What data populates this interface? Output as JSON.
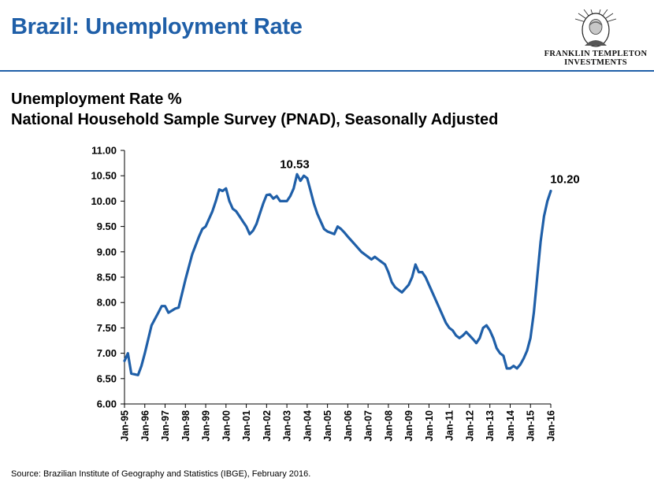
{
  "header": {
    "title": "Brazil: Unemployment Rate",
    "logo_line1": "FRANKLIN TEMPLETON",
    "logo_line2": "INVESTMENTS"
  },
  "subtitle": {
    "line1": "Unemployment Rate %",
    "line2": "National Household Sample Survey (PNAD), Seasonally Adjusted"
  },
  "source": "Source: Brazilian Institute of Geography and Statistics (IBGE), February 2016.",
  "chart_data": {
    "type": "line",
    "title": "",
    "xlabel": "",
    "ylabel": "",
    "ylim": [
      6.0,
      11.0
    ],
    "grid": false,
    "legend": "none",
    "yticks": [
      "6.00",
      "6.50",
      "7.00",
      "7.50",
      "8.00",
      "8.50",
      "9.00",
      "9.50",
      "10.00",
      "10.50",
      "11.00"
    ],
    "xticks": [
      "Jan-95",
      "Jan-96",
      "Jan-97",
      "Jan-98",
      "Jan-99",
      "Jan-00",
      "Jan-01",
      "Jan-02",
      "Jan-03",
      "Jan-04",
      "Jan-05",
      "Jan-06",
      "Jan-07",
      "Jan-08",
      "Jan-09",
      "Jan-10",
      "Jan-11",
      "Jan-12",
      "Jan-13",
      "Jan-14",
      "Jan-15",
      "Jan-16"
    ],
    "series": [
      {
        "color": "#1f5fa8",
        "points": [
          [
            "Jan-95",
            6.85
          ],
          [
            "Mar-95",
            7.0
          ],
          [
            "May-95",
            6.6
          ],
          [
            "Sep-95",
            6.57
          ],
          [
            "Nov-95",
            6.75
          ],
          [
            "Jan-96",
            7.0
          ],
          [
            "May-96",
            7.55
          ],
          [
            "Sep-96",
            7.8
          ],
          [
            "Nov-96",
            7.93
          ],
          [
            "Jan-97",
            7.93
          ],
          [
            "Mar-97",
            7.8
          ],
          [
            "Jul-97",
            7.88
          ],
          [
            "Sep-97",
            7.9
          ],
          [
            "Jan-98",
            8.45
          ],
          [
            "May-98",
            8.95
          ],
          [
            "Sep-98",
            9.3
          ],
          [
            "Nov-98",
            9.45
          ],
          [
            "Jan-99",
            9.5
          ],
          [
            "May-99",
            9.8
          ],
          [
            "Jul-99",
            10.0
          ],
          [
            "Sep-99",
            10.23
          ],
          [
            "Nov-99",
            10.2
          ],
          [
            "Jan-00",
            10.25
          ],
          [
            "Mar-00",
            10.0
          ],
          [
            "May-00",
            9.85
          ],
          [
            "Jul-00",
            9.8
          ],
          [
            "Sep-00",
            9.7
          ],
          [
            "Nov-00",
            9.6
          ],
          [
            "Jan-01",
            9.5
          ],
          [
            "Mar-01",
            9.35
          ],
          [
            "May-01",
            9.42
          ],
          [
            "Jul-01",
            9.55
          ],
          [
            "Sep-01",
            9.75
          ],
          [
            "Nov-01",
            9.95
          ],
          [
            "Jan-02",
            10.12
          ],
          [
            "Mar-02",
            10.13
          ],
          [
            "May-02",
            10.05
          ],
          [
            "Jul-02",
            10.1
          ],
          [
            "Sep-02",
            10.0
          ],
          [
            "Nov-02",
            10.0
          ],
          [
            "Jan-03",
            10.0
          ],
          [
            "Mar-03",
            10.1
          ],
          [
            "May-03",
            10.25
          ],
          [
            "Jul-03",
            10.53
          ],
          [
            "Sep-03",
            10.4
          ],
          [
            "Nov-03",
            10.5
          ],
          [
            "Jan-04",
            10.45
          ],
          [
            "Mar-04",
            10.2
          ],
          [
            "May-04",
            9.95
          ],
          [
            "Jul-04",
            9.75
          ],
          [
            "Sep-04",
            9.6
          ],
          [
            "Nov-04",
            9.45
          ],
          [
            "Jan-05",
            9.4
          ],
          [
            "May-05",
            9.35
          ],
          [
            "Jul-05",
            9.5
          ],
          [
            "Sep-05",
            9.45
          ],
          [
            "Nov-05",
            9.38
          ],
          [
            "Jan-06",
            9.3
          ],
          [
            "May-06",
            9.15
          ],
          [
            "Sep-06",
            9.0
          ],
          [
            "Nov-06",
            8.95
          ],
          [
            "Jan-07",
            8.9
          ],
          [
            "Mar-07",
            8.85
          ],
          [
            "May-07",
            8.9
          ],
          [
            "Jul-07",
            8.85
          ],
          [
            "Sep-07",
            8.8
          ],
          [
            "Nov-07",
            8.75
          ],
          [
            "Jan-08",
            8.6
          ],
          [
            "Mar-08",
            8.4
          ],
          [
            "May-08",
            8.3
          ],
          [
            "Sep-08",
            8.2
          ],
          [
            "Jan-09",
            8.35
          ],
          [
            "Mar-09",
            8.5
          ],
          [
            "May-09",
            8.75
          ],
          [
            "Jul-09",
            8.6
          ],
          [
            "Sep-09",
            8.6
          ],
          [
            "Nov-09",
            8.5
          ],
          [
            "Jan-10",
            8.35
          ],
          [
            "Mar-10",
            8.2
          ],
          [
            "May-10",
            8.05
          ],
          [
            "Jul-10",
            7.9
          ],
          [
            "Sep-10",
            7.75
          ],
          [
            "Nov-10",
            7.6
          ],
          [
            "Jan-11",
            7.5
          ],
          [
            "Mar-11",
            7.45
          ],
          [
            "May-11",
            7.35
          ],
          [
            "Jul-11",
            7.3
          ],
          [
            "Sep-11",
            7.35
          ],
          [
            "Nov-11",
            7.42
          ],
          [
            "Jan-12",
            7.35
          ],
          [
            "Mar-12",
            7.28
          ],
          [
            "May-12",
            7.2
          ],
          [
            "Jul-12",
            7.3
          ],
          [
            "Sep-12",
            7.5
          ],
          [
            "Nov-12",
            7.55
          ],
          [
            "Jan-13",
            7.45
          ],
          [
            "Mar-13",
            7.3
          ],
          [
            "May-13",
            7.1
          ],
          [
            "Jul-13",
            7.0
          ],
          [
            "Sep-13",
            6.95
          ],
          [
            "Nov-13",
            6.7
          ],
          [
            "Jan-14",
            6.7
          ],
          [
            "Mar-14",
            6.75
          ],
          [
            "May-14",
            6.7
          ],
          [
            "Jul-14",
            6.78
          ],
          [
            "Sep-14",
            6.9
          ],
          [
            "Nov-14",
            7.05
          ],
          [
            "Jan-15",
            7.3
          ],
          [
            "Mar-15",
            7.8
          ],
          [
            "May-15",
            8.5
          ],
          [
            "Jul-15",
            9.2
          ],
          [
            "Sep-15",
            9.7
          ],
          [
            "Nov-15",
            10.0
          ],
          [
            "Jan-16",
            10.2
          ]
        ]
      }
    ],
    "annotations": [
      {
        "text": "10.53",
        "x": "Jul-03",
        "y": 10.53
      },
      {
        "text": "10.20",
        "x": "Jan-16",
        "y": 10.2
      }
    ]
  }
}
